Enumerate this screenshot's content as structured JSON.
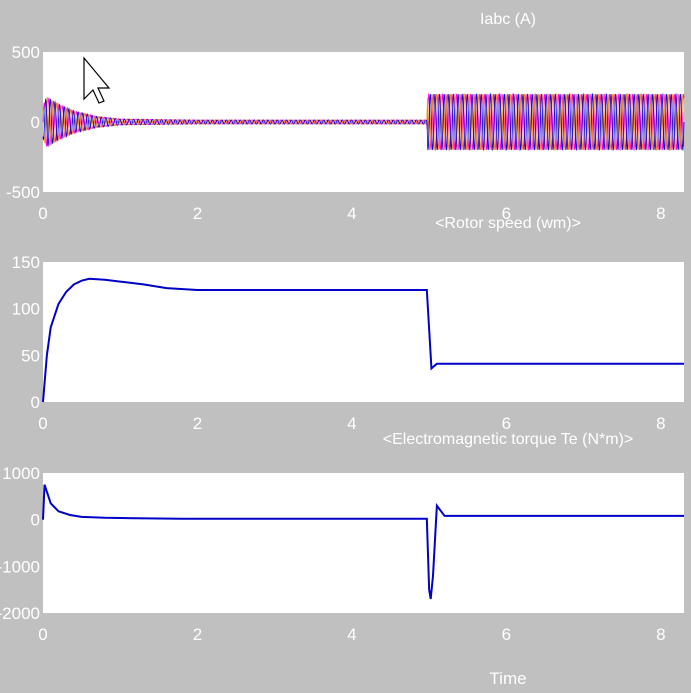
{
  "window": {
    "background_color": "#c0c0c0",
    "axes_color": "#ffffff",
    "text_color": "#ffffff"
  },
  "chart_data": [
    {
      "type": "line",
      "title": "Iabc (A)",
      "xlabel": "",
      "ylabel": "",
      "xlim": [
        0,
        8.3
      ],
      "ylim": [
        -500,
        500
      ],
      "xticks": [
        "0",
        "2",
        "4",
        "6",
        "8"
      ],
      "yticks": [
        "500",
        "0",
        "-500"
      ],
      "grid": false,
      "series": [
        {
          "color": "#ff00ff",
          "style": "oscillation",
          "x": [
            0,
            0.05,
            0.2,
            0.4,
            0.7,
            1.0,
            1.5,
            2.0,
            3.0,
            4.0,
            4.97,
            4.98,
            5.5,
            6.5,
            7.5,
            8.3
          ],
          "amplitude": [
            120,
            180,
            130,
            80,
            40,
            22,
            18,
            15,
            15,
            15,
            15,
            200,
            200,
            200,
            200,
            200
          ],
          "period": 0.06
        },
        {
          "color": "#ff8c00",
          "style": "oscillation",
          "x": [
            0,
            0.05,
            0.2,
            0.4,
            0.7,
            1.0,
            1.5,
            2.0,
            3.0,
            4.0,
            4.97,
            4.98,
            5.5,
            6.5,
            7.5,
            8.3
          ],
          "amplitude": [
            120,
            180,
            130,
            80,
            40,
            22,
            18,
            15,
            15,
            15,
            15,
            200,
            200,
            200,
            200,
            200
          ],
          "period": 0.06
        },
        {
          "color": "#0000c8",
          "style": "oscillation",
          "x": [
            0,
            0.05,
            0.2,
            0.4,
            0.7,
            1.0,
            1.5,
            2.0,
            3.0,
            4.0,
            4.97,
            4.98,
            5.5,
            6.5,
            7.5,
            8.3
          ],
          "amplitude": [
            120,
            180,
            130,
            80,
            40,
            22,
            18,
            15,
            15,
            15,
            15,
            200,
            200,
            200,
            200,
            200
          ],
          "period": 0.06
        }
      ]
    },
    {
      "type": "line",
      "title": "<Rotor speed (wm)>",
      "xlabel": "",
      "ylabel": "",
      "xlim": [
        0,
        8.3
      ],
      "ylim": [
        0,
        150
      ],
      "xticks": [
        "0",
        "2",
        "4",
        "6",
        "8"
      ],
      "yticks": [
        "150",
        "100",
        "50",
        "0"
      ],
      "grid": false,
      "series": [
        {
          "color": "#0000c8",
          "style": "line",
          "x": [
            0,
            0.05,
            0.1,
            0.2,
            0.3,
            0.4,
            0.5,
            0.6,
            0.8,
            1.0,
            1.3,
            1.6,
            2.0,
            3.0,
            4.0,
            4.97,
            5.03,
            5.1,
            6.0,
            7.0,
            8.3
          ],
          "y": [
            0,
            50,
            80,
            105,
            118,
            126,
            130,
            132,
            131,
            129,
            126,
            122,
            120,
            120,
            120,
            120,
            36,
            41,
            41,
            41,
            41
          ]
        }
      ]
    },
    {
      "type": "line",
      "title": "<Electromagnetic torque Te (N*m)>",
      "xlabel": "Time",
      "ylabel": "",
      "xlim": [
        0,
        8.3
      ],
      "ylim": [
        -2000,
        1000
      ],
      "xticks": [
        "0",
        "2",
        "4",
        "6",
        "8"
      ],
      "yticks": [
        "1000",
        "0",
        "-1000",
        "-2000"
      ],
      "grid": false,
      "series": [
        {
          "color": "#0000c8",
          "style": "line",
          "x": [
            0,
            0.02,
            0.05,
            0.1,
            0.2,
            0.35,
            0.5,
            0.8,
            1.2,
            1.8,
            2.5,
            3.5,
            4.5,
            4.97,
            5.0,
            5.02,
            5.05,
            5.1,
            5.2,
            6.0,
            7.0,
            8.3
          ],
          "y": [
            0,
            750,
            600,
            350,
            180,
            100,
            60,
            40,
            30,
            20,
            20,
            20,
            20,
            20,
            -1500,
            -1700,
            -1200,
            300,
            80,
            80,
            80,
            80
          ]
        }
      ]
    }
  ]
}
